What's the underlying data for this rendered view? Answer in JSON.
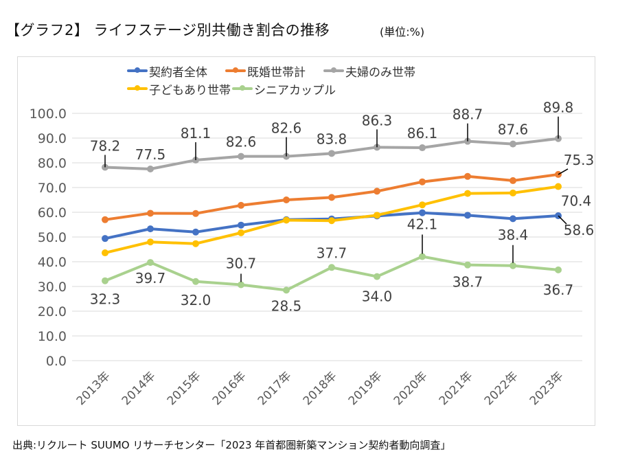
{
  "header": {
    "title": "【グラフ2】 ライフステージ別共働き割合の推移",
    "unit": "(単位:%)"
  },
  "source": "出典:リクルート SUUMO リサーチセンター「2023 年首都圏新築マンション契約者動向調査」",
  "chart_data": {
    "type": "line",
    "title": "【グラフ2】 ライフステージ別共働き割合の推移",
    "unit": "%",
    "xlabel": "",
    "ylabel": "",
    "ylim": [
      0,
      100
    ],
    "yticks": [
      0,
      10,
      20,
      30,
      40,
      50,
      60,
      70,
      80,
      90,
      100
    ],
    "ytick_labels": [
      "0.0",
      "10.0",
      "20.0",
      "30.0",
      "40.0",
      "50.0",
      "60.0",
      "70.0",
      "80.0",
      "90.0",
      "100.0"
    ],
    "grid": true,
    "legend_position": "top",
    "categories": [
      "2013年",
      "2014年",
      "2015年",
      "2016年",
      "2017年",
      "2018年",
      "2019年",
      "2020年",
      "2021年",
      "2022年",
      "2023年"
    ],
    "series": [
      {
        "name": "契約者全体",
        "color": "#4472c4",
        "values": [
          49.4,
          53.3,
          52.0,
          54.8,
          57.0,
          57.3,
          58.5,
          59.8,
          58.8,
          57.4,
          58.6
        ],
        "labels": [
          null,
          null,
          null,
          null,
          null,
          null,
          null,
          null,
          null,
          null,
          "58.6"
        ]
      },
      {
        "name": "既婚世帯計",
        "color": "#ed7d31",
        "values": [
          57.0,
          59.6,
          59.5,
          62.8,
          65.0,
          66.0,
          68.5,
          72.3,
          74.5,
          72.8,
          75.3
        ],
        "labels": [
          null,
          null,
          null,
          null,
          null,
          null,
          null,
          null,
          null,
          null,
          "75.3"
        ]
      },
      {
        "name": "夫婦のみ世帯",
        "color": "#a5a5a5",
        "values": [
          78.2,
          77.5,
          81.1,
          82.6,
          82.6,
          83.8,
          86.3,
          86.1,
          88.7,
          87.6,
          89.8
        ],
        "labels": [
          "78.2",
          "77.5",
          "81.1",
          "82.6",
          "82.6",
          "83.8",
          "86.3",
          "86.1",
          "88.7",
          "87.6",
          "89.8"
        ]
      },
      {
        "name": "子どもあり世帯",
        "color": "#ffc000",
        "values": [
          43.6,
          48.0,
          47.3,
          51.7,
          56.8,
          56.6,
          58.8,
          63.0,
          67.6,
          67.8,
          70.4
        ],
        "labels": [
          null,
          null,
          null,
          null,
          null,
          null,
          null,
          null,
          null,
          null,
          "70.4"
        ]
      },
      {
        "name": "シニアカップル",
        "color": "#a9d18e",
        "values": [
          32.3,
          39.7,
          32.0,
          30.7,
          28.5,
          37.7,
          34.0,
          42.1,
          38.7,
          38.4,
          36.7
        ],
        "labels": [
          "32.3",
          "39.7",
          "32.0",
          "30.7",
          "28.5",
          "37.7",
          "34.0",
          "42.1",
          "38.7",
          "38.4",
          "36.7"
        ]
      }
    ]
  }
}
